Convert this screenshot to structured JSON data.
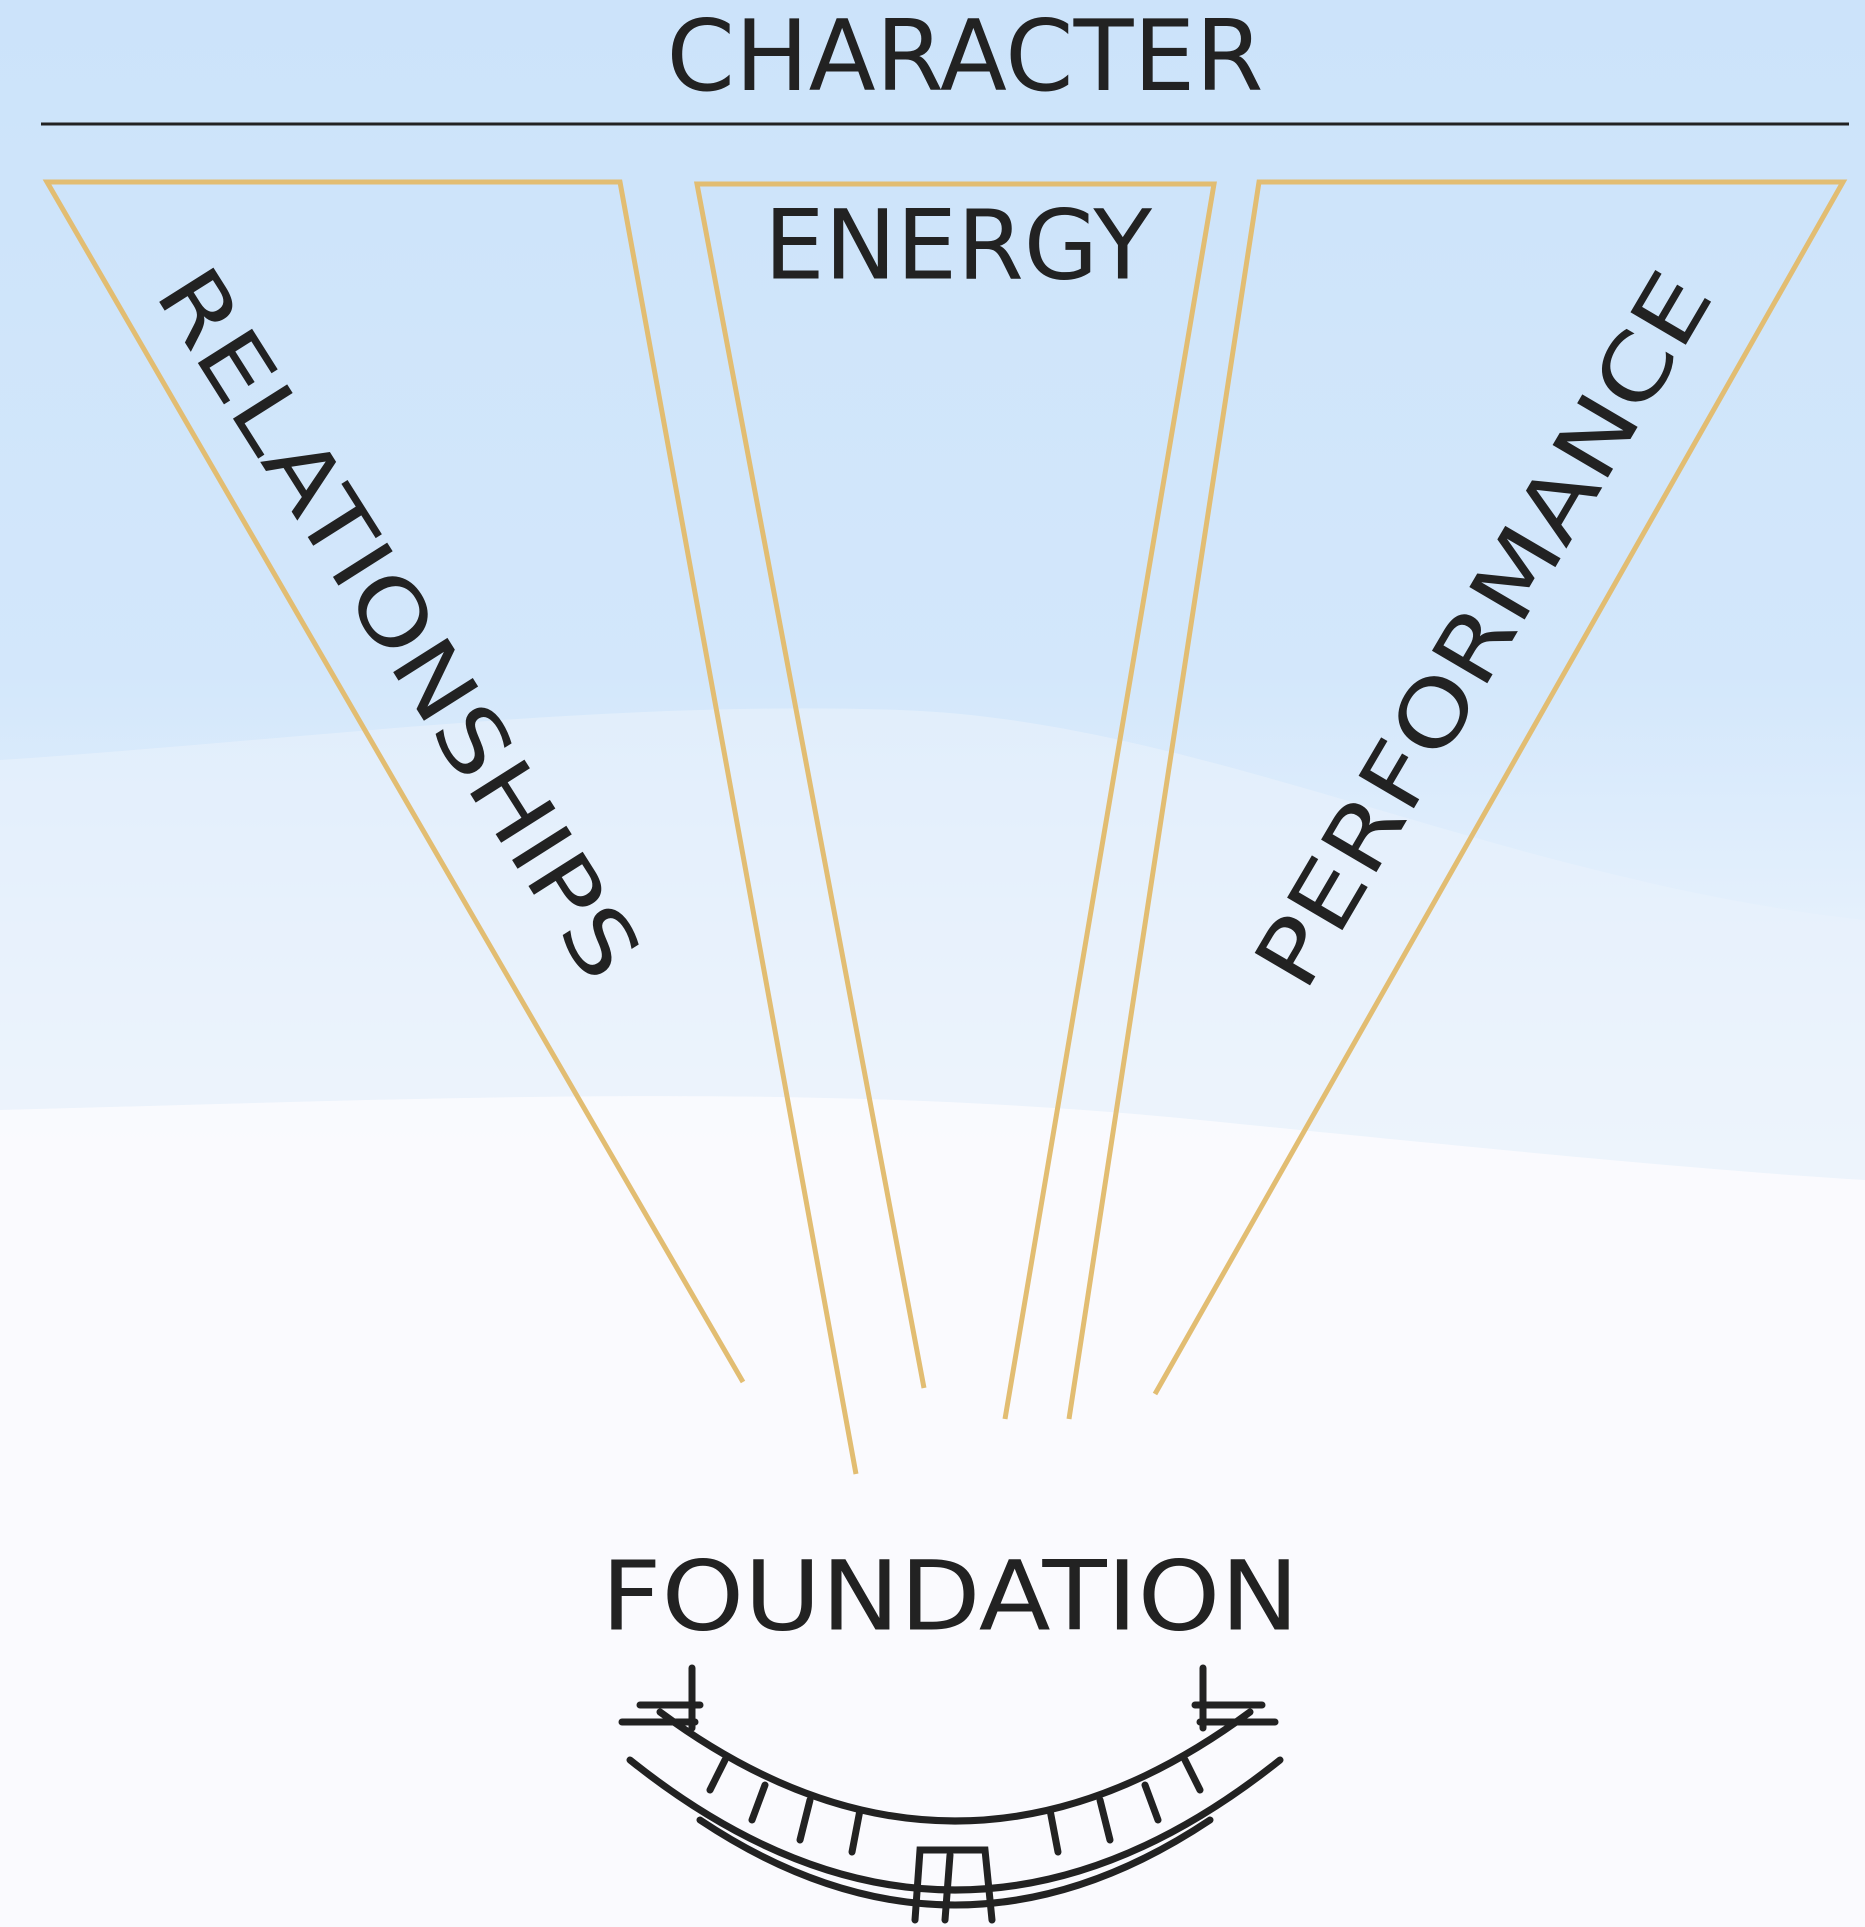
{
  "title": "CHARACTER",
  "branches": [
    {
      "label": "RELATIONSHIPS"
    },
    {
      "label": "ENERGY"
    },
    {
      "label": "PERFORMANCE"
    }
  ],
  "foundation": "FOUNDATION"
}
